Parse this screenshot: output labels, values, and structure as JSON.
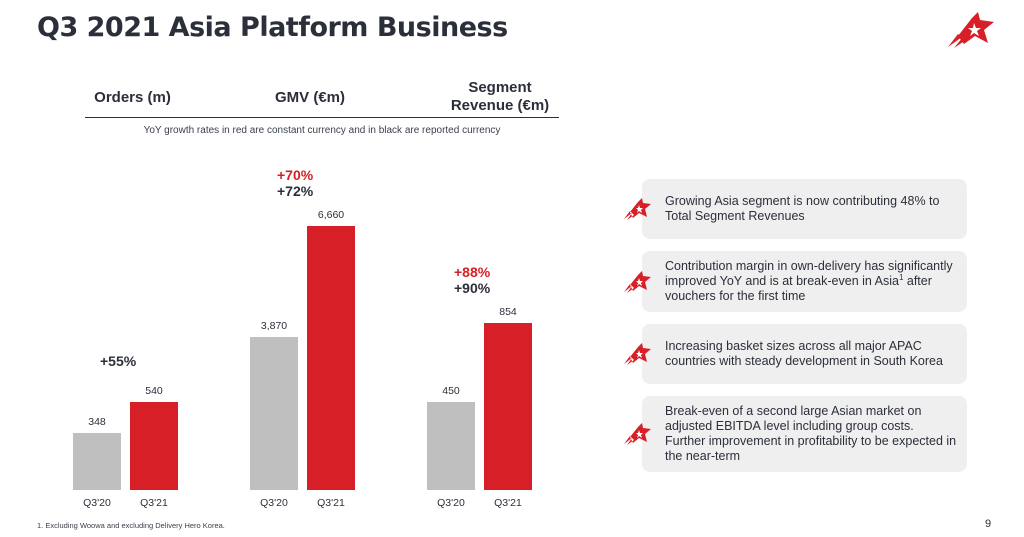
{
  "title": "Q3 2021 Asia Platform Business",
  "headers": {
    "orders": "Orders (m)",
    "gmv": "GMV (€m)",
    "revenue_line1": "Segment",
    "revenue_line2": "Revenue (€m)"
  },
  "note": "YoY growth rates in red are constant currency and in black are reported currency",
  "colors": {
    "prior": "#bfbfbf",
    "current": "#d61f26",
    "text": "#2b2f3a"
  },
  "chart_data": [
    {
      "type": "bar",
      "title": "Orders (m)",
      "categories": [
        "Q3'20",
        "Q3'21"
      ],
      "values": [
        348,
        540
      ],
      "growth_constant_currency": "",
      "growth_reported": "+55%"
    },
    {
      "type": "bar",
      "title": "GMV (€m)",
      "categories": [
        "Q3'20",
        "Q3'21"
      ],
      "values": [
        3870,
        6660
      ],
      "growth_constant_currency": "+70%",
      "growth_reported": "+72%"
    },
    {
      "type": "bar",
      "title": "Segment Revenue (€m)",
      "categories": [
        "Q3'20",
        "Q3'21"
      ],
      "values": [
        450,
        854
      ],
      "growth_constant_currency": "+88%",
      "growth_reported": "+90%"
    }
  ],
  "value_labels": {
    "orders": [
      "348",
      "540"
    ],
    "gmv": [
      "3,870",
      "6,660"
    ],
    "revenue": [
      "450",
      "854"
    ]
  },
  "cards": [
    {
      "text": "Growing Asia segment is now contributing 48% to Total Segment Revenues",
      "icon": "rocket-star-icon"
    },
    {
      "text_before": "Contribution margin in own-delivery has significantly improved YoY and is at break-even in Asia",
      "footnote_ref": "1",
      "text_after": " after vouchers for the first time",
      "icon": "rocket-star-icon"
    },
    {
      "text": "Increasing basket sizes across all major APAC countries with steady development in South Korea",
      "icon": "rocket-star-icon"
    },
    {
      "text": "Break-even of a second large Asian market on adjusted EBITDA level including group costs. Further improvement in profitability to be expected in the near-term",
      "icon": "rocket-star-icon"
    }
  ],
  "footnote": "1. Excluding Woowa and excluding Delivery Hero Korea.",
  "page_number": "9"
}
